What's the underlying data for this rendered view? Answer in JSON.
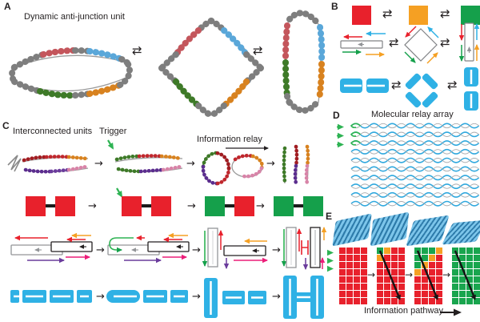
{
  "glyphs": {
    "equilibrium": "⇄",
    "arrow": "→"
  },
  "palette": {
    "red": "#e8212c",
    "orange": "#f5a023",
    "green": "#15a04b",
    "blue": "#2fb1e5"
  },
  "panels": {
    "a": {
      "letter": "A",
      "title": "Dynamic anti-junction unit"
    },
    "b": {
      "letter": "B",
      "squares": [
        "red",
        "orange",
        "green"
      ]
    },
    "c": {
      "letter": "C",
      "interconnected_label": "Interconnected units",
      "trigger_label": "Trigger",
      "relay_label": "Information relay",
      "square_states": [
        [
          "red",
          "red"
        ],
        [
          "red",
          "red"
        ],
        [
          "green",
          "red"
        ],
        [
          "green",
          "green"
        ]
      ]
    },
    "d": {
      "letter": "D",
      "title": "Molecular relay array",
      "mesh": {
        "rows": 10,
        "cols": 7,
        "green_inputs": 3
      }
    },
    "e": {
      "letter": "E",
      "caption": "Information pathway",
      "cell_colors": {
        "r": "#e8212c",
        "o": "#f5a023",
        "g": "#19a54e"
      },
      "grids": [
        {
          "arrow": false,
          "rows": [
            "rrrr",
            "rrrr",
            "rrrr",
            "rrrr",
            "rrrr",
            "rrrr",
            "rrrr",
            "rrrr"
          ]
        },
        {
          "arrow": true,
          "rows": [
            "gorr",
            "orrr",
            "rrrr",
            "rrrr",
            "rrrr",
            "rrrr",
            "rrrr",
            "rrrr"
          ]
        },
        {
          "arrow": true,
          "rows": [
            "gggo",
            "ggor",
            "gorr",
            "orrr",
            "rrrr",
            "rrrr",
            "rrrr",
            "rrrr"
          ]
        },
        {
          "arrow": true,
          "rows": [
            "gggg",
            "gggg",
            "gggg",
            "gggg",
            "gggg",
            "gggg",
            "gggg",
            "gggg"
          ]
        }
      ]
    }
  }
}
